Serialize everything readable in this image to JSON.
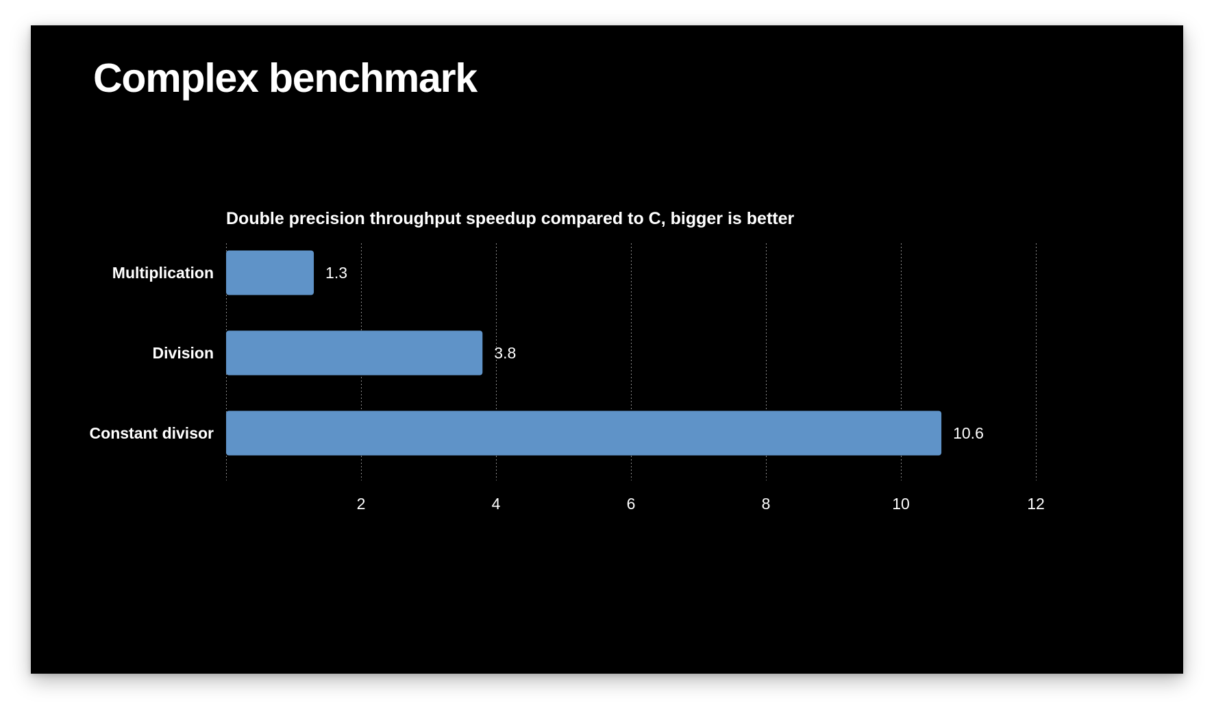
{
  "slide": {
    "title": "Complex benchmark"
  },
  "colors": {
    "background": "#000000",
    "bar": "#5f93c8",
    "text": "#ffffff",
    "grid": "#8a8a8a"
  },
  "chart_data": {
    "type": "bar",
    "orientation": "horizontal",
    "title": "Double precision throughput speedup compared to C, bigger is better",
    "xlabel": "",
    "ylabel": "",
    "categories": [
      "Multiplication",
      "Division",
      "Constant divisor"
    ],
    "values": [
      1.3,
      3.8,
      10.6
    ],
    "value_labels": [
      "1.3",
      "3.8",
      "10.6"
    ],
    "xlim": [
      0,
      12
    ],
    "x_ticks": [
      2,
      4,
      6,
      8,
      10,
      12
    ],
    "x_tick_labels": [
      "2",
      "4",
      "6",
      "8",
      "10",
      "12"
    ],
    "grid": "vertical-dotted",
    "legend": "none"
  }
}
